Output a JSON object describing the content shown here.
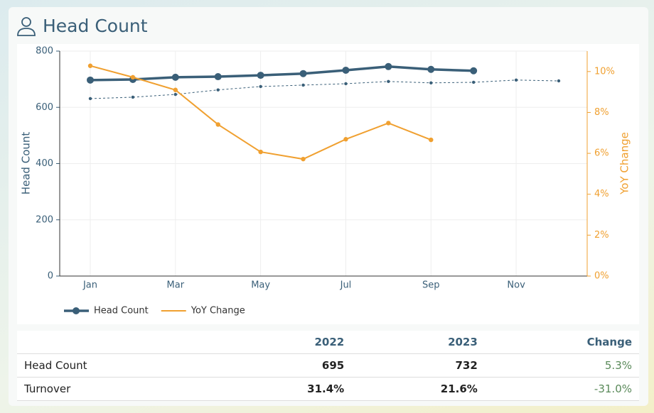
{
  "header": {
    "title": "Head Count"
  },
  "chart_data": {
    "type": "line",
    "categories": [
      "Jan",
      null,
      "Mar",
      null,
      "May",
      null,
      "Jul",
      null,
      "Sep",
      null,
      "Nov",
      null
    ],
    "series": [
      {
        "name": "Head Count",
        "color": "#3a5f78",
        "values": [
          697,
          699,
          707,
          709,
          714,
          720,
          732,
          745,
          735,
          730,
          null,
          null
        ]
      },
      {
        "color": "#3a5f78",
        "dashed": true,
        "values": [
          631,
          636,
          646,
          662,
          674,
          679,
          684,
          692,
          687,
          689,
          697,
          694
        ]
      },
      {
        "name": "YoY Change",
        "color": "#f0a030",
        "axis": "y2",
        "values": [
          10.28,
          9.72,
          9.1,
          7.41,
          6.07,
          5.72,
          6.69,
          7.48,
          6.66,
          null,
          null,
          null
        ]
      }
    ],
    "ylabel": "Head Count",
    "y2label": "YoY Change",
    "ylim": [
      0,
      800
    ],
    "yticks": [
      0,
      200,
      400,
      600,
      800
    ],
    "y2lim": [
      0,
      11
    ],
    "y2ticks": [
      {
        "value": 0,
        "label": "0%"
      },
      {
        "value": 2,
        "label": "2%"
      },
      {
        "value": 4,
        "label": "4%"
      },
      {
        "value": 6,
        "label": "6%"
      },
      {
        "value": 8,
        "label": "8%"
      },
      {
        "value": 10,
        "label": "10%"
      }
    ],
    "grid": true,
    "legend": "bottom-left"
  },
  "table": {
    "columns": [
      "2022",
      "2023",
      "Change"
    ],
    "rows": [
      [
        "Head Count",
        "695",
        "732",
        "5.3%"
      ],
      [
        "Turnover",
        "31.4%",
        "21.6%",
        "-31.0%"
      ]
    ]
  }
}
